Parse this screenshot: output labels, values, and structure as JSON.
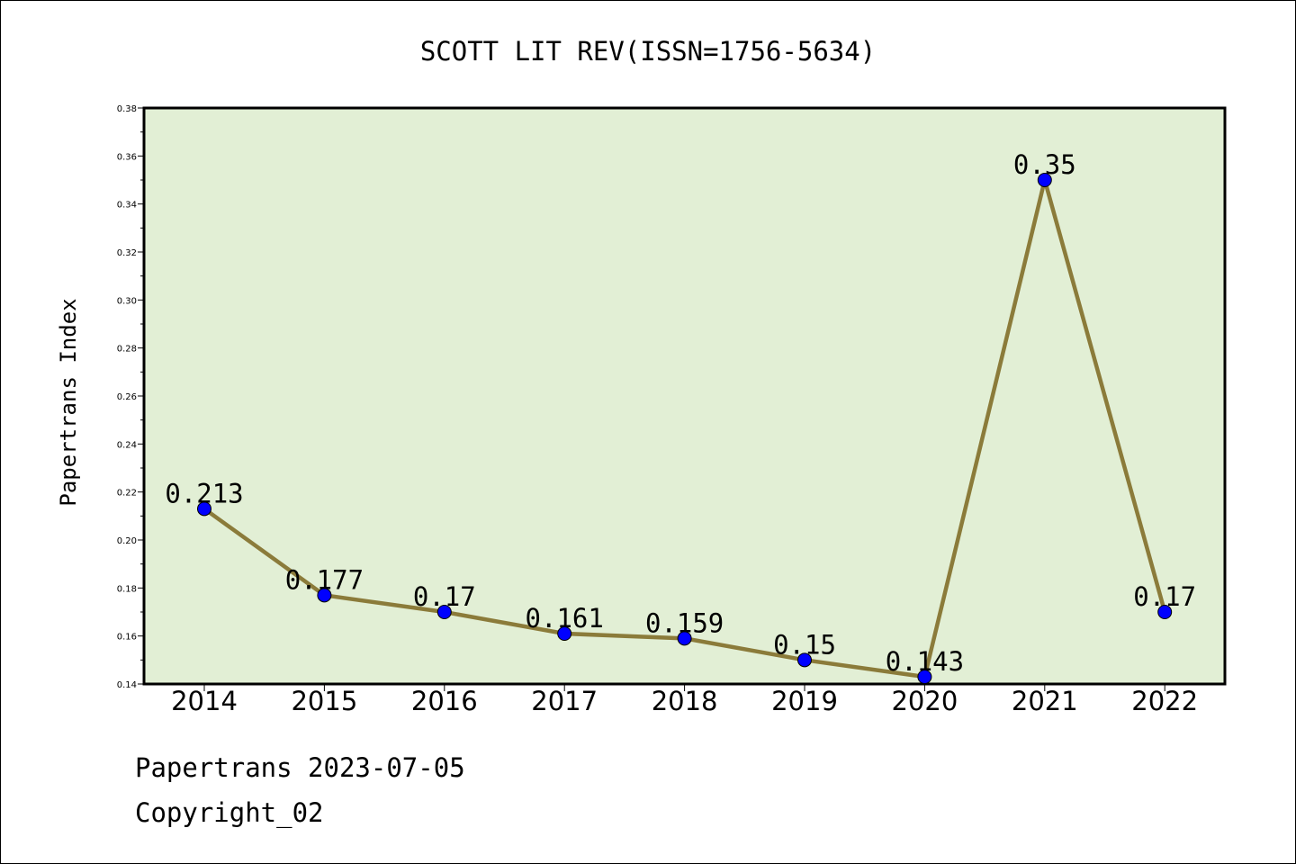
{
  "chart_data": {
    "type": "line",
    "title": "SCOTT LIT REV(ISSN=1756-5634)",
    "xlabel": "",
    "ylabel": "Papertrans Index",
    "categories": [
      "2014",
      "2015",
      "2016",
      "2017",
      "2018",
      "2019",
      "2020",
      "2021",
      "2022"
    ],
    "values": [
      0.213,
      0.177,
      0.17,
      0.161,
      0.159,
      0.15,
      0.143,
      0.35,
      0.17
    ],
    "data_labels": [
      "0.213",
      "0.177",
      "0.17",
      "0.161",
      "0.159",
      "0.15",
      "0.143",
      "0.35",
      "0.17"
    ],
    "ylim": [
      0.14,
      0.38
    ],
    "yticks": [
      "0.14",
      "0.16",
      "0.18",
      "0.20",
      "0.22",
      "0.24",
      "0.26",
      "0.28",
      "0.30",
      "0.32",
      "0.34",
      "0.36",
      "0.38"
    ],
    "grid": false,
    "legend": "none",
    "colors": {
      "plot_background": "#e2efd5",
      "line": "#8b7b3a",
      "marker": "#0000ff"
    }
  },
  "footer": {
    "date_line": "Papertrans 2023-07-05",
    "copyright": "Copyright_02"
  }
}
